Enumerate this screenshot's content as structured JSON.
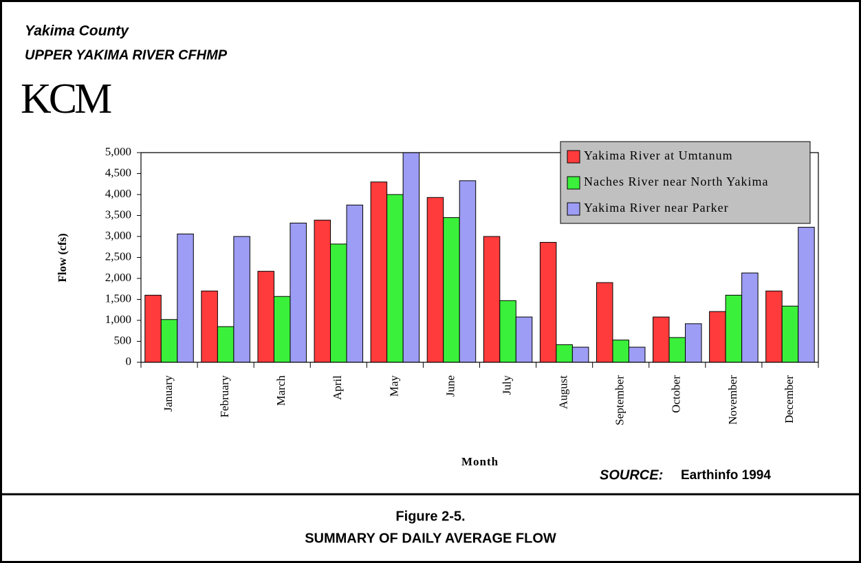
{
  "header": {
    "county": "Yakima County",
    "project": "UPPER YAKIMA RIVER CFHMP",
    "logo": "KCM"
  },
  "chart_data": {
    "type": "bar",
    "categories": [
      "January",
      "February",
      "March",
      "April",
      "May",
      "June",
      "July",
      "August",
      "September",
      "October",
      "November",
      "December"
    ],
    "series": [
      {
        "name": "Yakima River at Umtanum",
        "color": "#ff3b3b",
        "values": [
          1600,
          1700,
          2170,
          3390,
          4300,
          3930,
          3000,
          2860,
          1900,
          1080,
          1210,
          1700
        ]
      },
      {
        "name": "Naches River near North Yakima",
        "color": "#3bf03b",
        "values": [
          1020,
          850,
          1570,
          2820,
          4000,
          3450,
          1470,
          420,
          530,
          590,
          1600,
          1340
        ]
      },
      {
        "name": "Yakima River near Parker",
        "color": "#9d9df5",
        "values": [
          3060,
          3000,
          3320,
          3750,
          5000,
          4330,
          1080,
          360,
          360,
          920,
          2130,
          3220
        ]
      }
    ],
    "ylim": [
      0,
      5000
    ],
    "yticks": [
      0,
      {
        "value": 500,
        "label": "500"
      },
      {
        "value": 1000,
        "label": "1,000"
      },
      {
        "value": 1500,
        "label": "1,500"
      },
      {
        "value": 2000,
        "label": "2,000"
      },
      {
        "value": 2500,
        "label": "2,500"
      },
      {
        "value": 3000,
        "label": "3,000"
      },
      {
        "value": 3500,
        "label": "3,500"
      },
      {
        "value": 4000,
        "label": "4,000"
      },
      {
        "value": 4500,
        "label": "4,500"
      },
      {
        "value": 5000,
        "label": "5,000"
      }
    ],
    "y_label": "Flow (cfs)",
    "x_label": "Month",
    "legend": "upper right",
    "grid": false
  },
  "source": {
    "label": "SOURCE:",
    "text": "Earthinfo 1994"
  },
  "caption": {
    "number": "Figure 2-5.",
    "title": "SUMMARY OF DAILY AVERAGE FLOW"
  }
}
